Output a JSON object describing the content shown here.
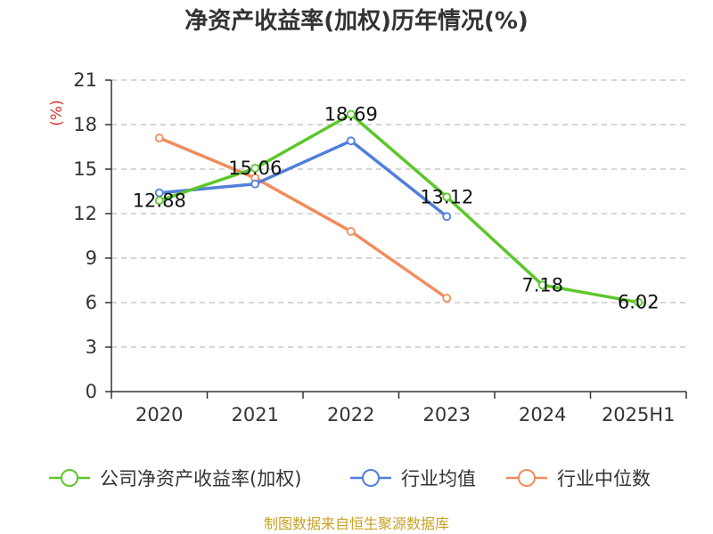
{
  "chart_data": {
    "type": "line",
    "title": "净资产收益率(加权)历年情况(%)",
    "unit_label": "(%)",
    "categories": [
      "2020",
      "2021",
      "2022",
      "2023",
      "2024",
      "2025H1"
    ],
    "ylim": [
      0,
      21
    ],
    "yticks": [
      0,
      3,
      6,
      9,
      12,
      15,
      18,
      21
    ],
    "grid": true,
    "legend_position": "bottom",
    "series": [
      {
        "name": "公司净资产收益率(加权)",
        "color": "#5cc72b",
        "values": [
          12.88,
          15.06,
          18.69,
          13.12,
          7.18,
          6.02
        ],
        "show_labels": true
      },
      {
        "name": "行业均值",
        "color": "#4f7fdc",
        "values": [
          13.4,
          14.0,
          16.9,
          11.8,
          null,
          null
        ],
        "show_labels": false
      },
      {
        "name": "行业中位数",
        "color": "#f28c5a",
        "values": [
          17.1,
          14.4,
          10.8,
          6.3,
          null,
          null
        ],
        "show_labels": false
      }
    ]
  },
  "source": "制图数据来自恒生聚源数据库"
}
